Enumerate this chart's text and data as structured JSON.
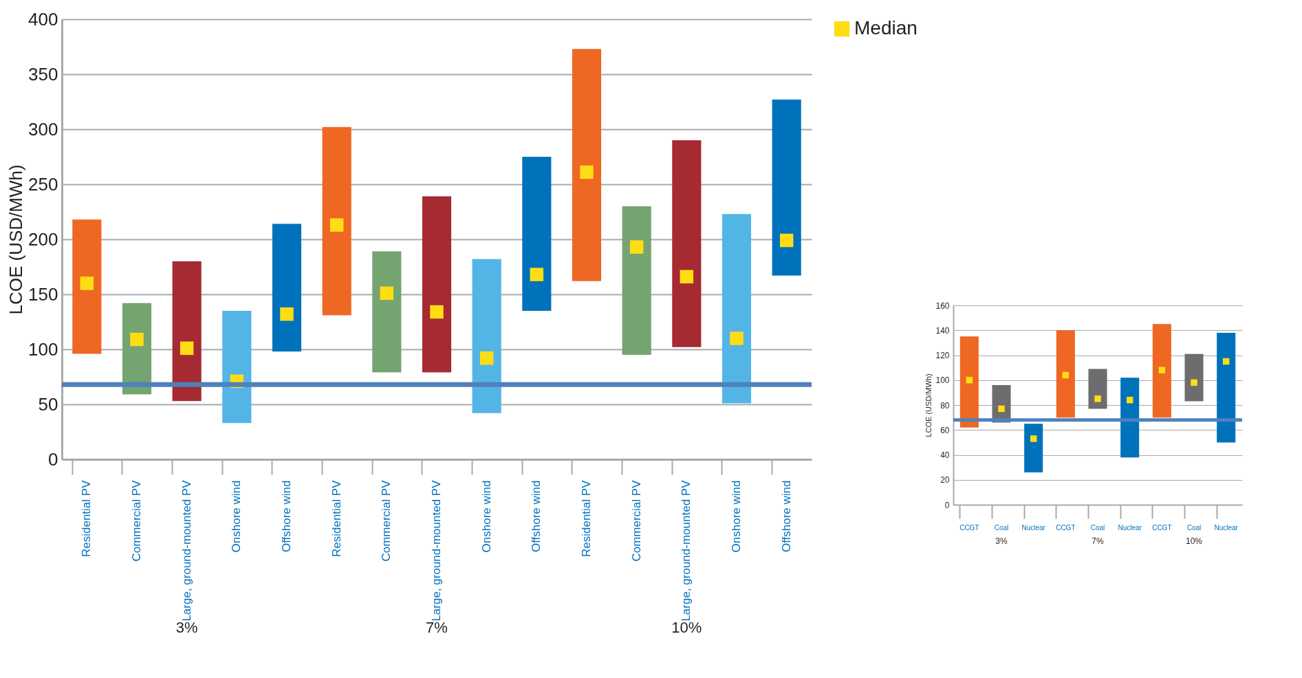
{
  "chart_data": [
    {
      "type": "bar",
      "ylabel": "LCOE (USD/MWh)",
      "ylim": [
        0,
        400
      ],
      "yticks": [
        0,
        50,
        100,
        150,
        200,
        250,
        300,
        350,
        400
      ],
      "grid": "y",
      "legend": "top right",
      "categories": [
        "Residential PV",
        "Commercial PV",
        "Large, ground-mounted PV",
        "Onshore wind",
        "Offshore wind",
        "Residential PV",
        "Commercial PV",
        "Large, ground-mounted PV",
        "Onshore wind",
        "Offshore wind",
        "Residential PV",
        "Commercial PV",
        "Large, ground-mounted PV",
        "Onshore wind",
        "Offshore wind"
      ],
      "annotations": [
        "3%",
        "7%",
        "10%"
      ],
      "ref_lines": [
        {
          "axis": "y",
          "value": 68,
          "color": "#4f81bd"
        }
      ],
      "series": [
        {
          "type": "bar",
          "base": [
            96,
            59,
            53,
            33,
            98,
            131,
            79,
            79,
            42,
            135,
            162,
            95,
            102,
            51,
            167
          ],
          "values": [
            122,
            83,
            127,
            102,
            116,
            171,
            110,
            160,
            140,
            140,
            211,
            135,
            188,
            172,
            160
          ],
          "colors": [
            "#ee6723",
            "#74a470",
            "#a62a32",
            "#53b5e6",
            "#0072bb",
            "#ee6723",
            "#74a470",
            "#a62a32",
            "#53b5e6",
            "#0072bb",
            "#ee6723",
            "#74a470",
            "#a62a32",
            "#53b5e6",
            "#0072bb"
          ]
        },
        {
          "type": "scatter",
          "name": "Median",
          "marker": "square",
          "color": "#ffdd15",
          "values": [
            160,
            109,
            101,
            71,
            132,
            213,
            151,
            134,
            92,
            168,
            261,
            193,
            166,
            110,
            199
          ]
        }
      ]
    },
    {
      "type": "bar",
      "ylabel": "LCOE (USD/MWh)",
      "ylim": [
        0,
        160
      ],
      "yticks": [
        0,
        20,
        40,
        60,
        80,
        100,
        120,
        140,
        160
      ],
      "grid": "y",
      "categories": [
        "CCGT",
        "Coal",
        "Nuclear",
        "CCGT",
        "Coal",
        "Nuclear",
        "CCGT",
        "Coal",
        "Nuclear"
      ],
      "annotations": [
        "3%",
        "7%",
        "10%"
      ],
      "ref_lines": [
        {
          "axis": "y",
          "value": 68,
          "color": "#4f81bd"
        }
      ],
      "series": [
        {
          "type": "bar",
          "base": [
            62,
            66,
            26,
            70,
            77,
            38,
            70,
            83,
            50
          ],
          "values": [
            73,
            30,
            39,
            70,
            32,
            64,
            75,
            38,
            88
          ],
          "colors": [
            "#ee6723",
            "#6d6d6f",
            "#0072bb",
            "#ee6723",
            "#6d6d6f",
            "#0072bb",
            "#ee6723",
            "#6d6d6f",
            "#0072bb"
          ]
        },
        {
          "type": "scatter",
          "marker": "square",
          "color": "#ffdd15",
          "values": [
            100,
            77,
            53,
            104,
            85,
            84,
            108,
            98,
            115
          ]
        }
      ]
    }
  ]
}
